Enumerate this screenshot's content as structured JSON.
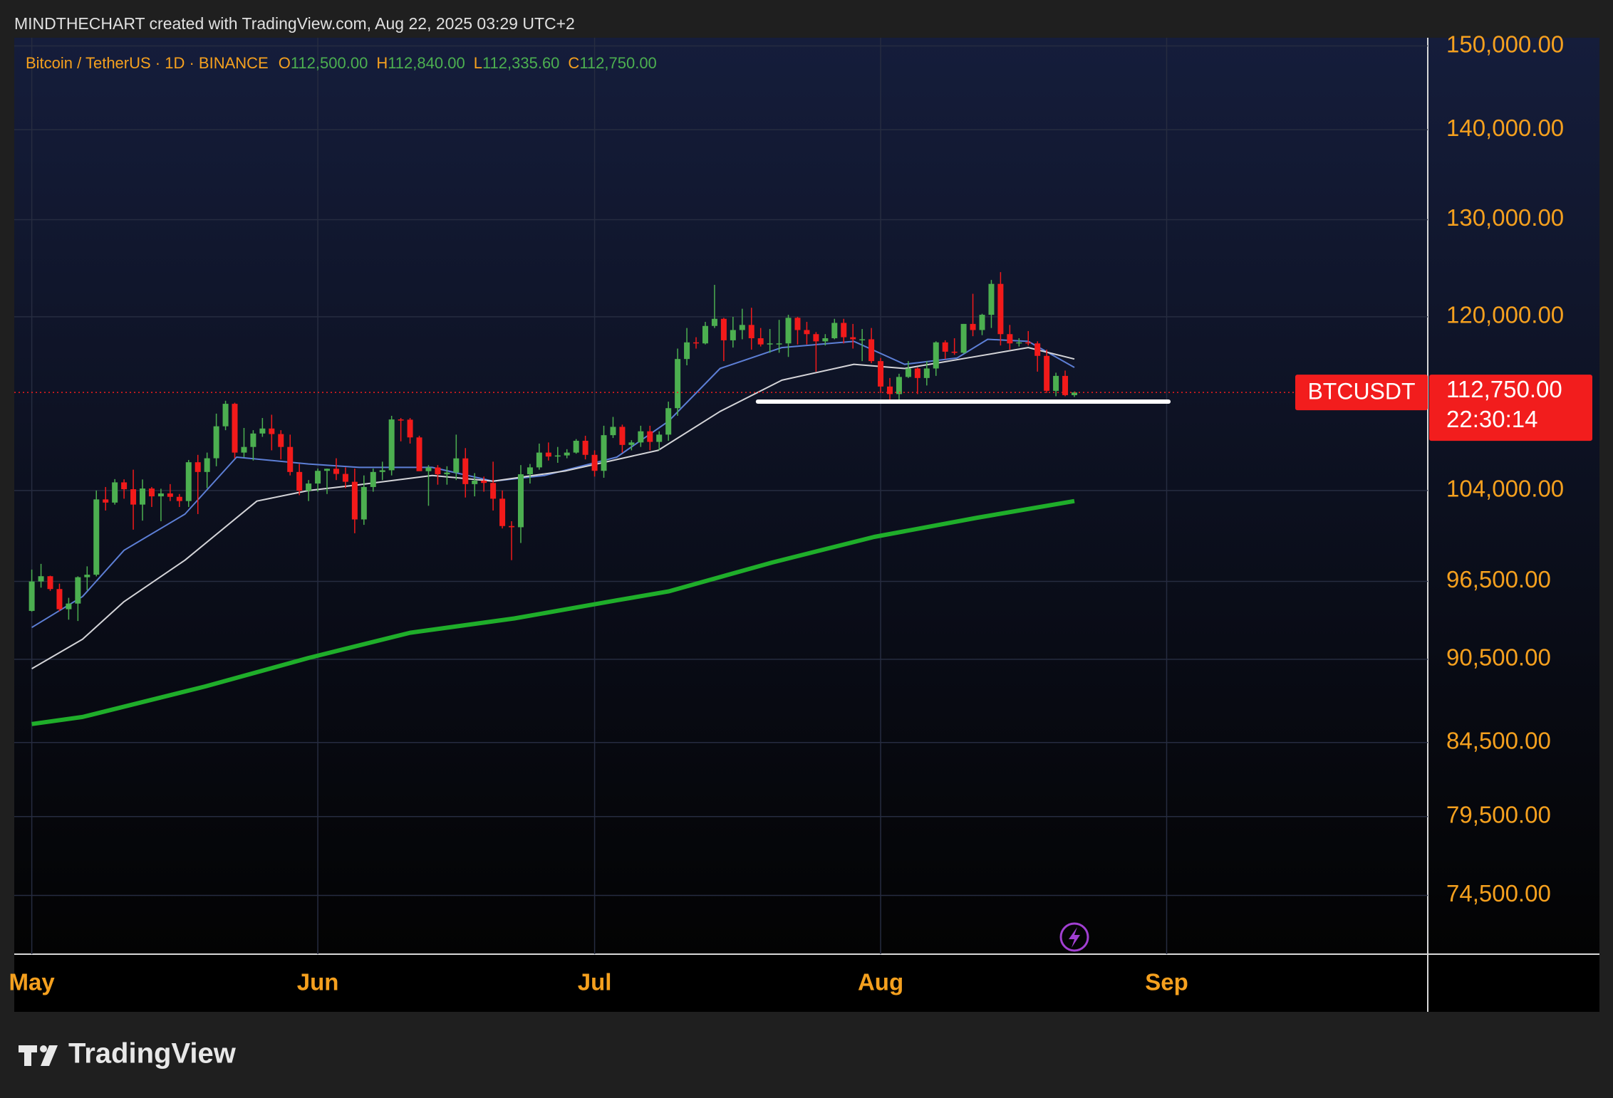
{
  "chart_data": {
    "type": "candlestick",
    "attribution": "MINDTHECHART created with TradingView.com, Aug 22, 2025 03:29 UTC+2",
    "title": "Bitcoin / TetherUS · 1D · BINANCE",
    "ohlc_legend": [
      {
        "key": "O",
        "label": "112,500.00"
      },
      {
        "key": "H",
        "label": "112,840.00"
      },
      {
        "key": "L",
        "label": "112,335.60"
      },
      {
        "key": "C",
        "label": "112,750.00"
      }
    ],
    "x": [
      0,
      1,
      2,
      3,
      4,
      5,
      6,
      7,
      8,
      9,
      10,
      11,
      12,
      13,
      14,
      15,
      16,
      17,
      18,
      19,
      20,
      21,
      22,
      23,
      24,
      25,
      26,
      27,
      28,
      29,
      30,
      31,
      32,
      33,
      34,
      35,
      36,
      37,
      38,
      39,
      40,
      41,
      42,
      43,
      44,
      45,
      46,
      47,
      48,
      49,
      50,
      51,
      52,
      53,
      54,
      55,
      56,
      57,
      58,
      59,
      60,
      61,
      62,
      63,
      64,
      65,
      66,
      67,
      68,
      69,
      70,
      71,
      72,
      73,
      74,
      75,
      76,
      77,
      78,
      79,
      80,
      81,
      82,
      83,
      84,
      85,
      86,
      87,
      88,
      89,
      90,
      91,
      92,
      93,
      94,
      95,
      96,
      97,
      98,
      99,
      100,
      101,
      102,
      103,
      104,
      105,
      106,
      107,
      108,
      109,
      110,
      111,
      112,
      113
    ],
    "open": [
      94180,
      96490,
      96910,
      95890,
      94310,
      94750,
      96830,
      97030,
      103240,
      102970,
      104700,
      104110,
      102800,
      104170,
      103500,
      103750,
      103460,
      103100,
      106450,
      105600,
      106800,
      109650,
      111700,
      107300,
      107800,
      109000,
      109450,
      108950,
      107800,
      105600,
      103980,
      104600,
      105700,
      105880,
      105430,
      104750,
      101550,
      104300,
      105600,
      105750,
      110270,
      110250,
      108650,
      105670,
      105990,
      105400,
      105550,
      106790,
      104550,
      104850,
      104650,
      103300,
      101000,
      100900,
      105400,
      106000,
      107300,
      106950,
      107050,
      107300,
      108350,
      107100,
      105700,
      108850,
      109600,
      107980,
      108200,
      109200,
      108250,
      108900,
      111300,
      115900,
      117500,
      117400,
      119100,
      119800,
      117700,
      118700,
      119200,
      117900,
      117300,
      117400,
      117400,
      119900,
      118700,
      118300,
      117600,
      117900,
      119400,
      118000,
      117800,
      117800,
      115700,
      113300,
      112600,
      114200,
      115000,
      114100,
      115000,
      117500,
      116600,
      116500,
      119300,
      118700,
      120200,
      123300,
      118300,
      117400,
      117500,
      117400,
      116200,
      112900,
      114300,
      112500
    ],
    "high": [
      97440,
      97900,
      96950,
      96320,
      95200,
      96900,
      97700,
      104000,
      104300,
      104980,
      104960,
      105800,
      104950,
      104300,
      104150,
      104550,
      103700,
      106650,
      107100,
      107300,
      110800,
      111980,
      111800,
      109500,
      109300,
      110400,
      110700,
      109300,
      108900,
      106300,
      104900,
      105900,
      105900,
      106800,
      106000,
      105900,
      105300,
      105900,
      106500,
      110600,
      110400,
      110400,
      108800,
      106200,
      106200,
      106100,
      108900,
      107700,
      105500,
      105200,
      106500,
      104000,
      101400,
      106200,
      106300,
      108100,
      108200,
      107800,
      107600,
      108500,
      108800,
      107500,
      109700,
      110500,
      109800,
      108400,
      109700,
      109700,
      109200,
      111900,
      116900,
      118900,
      118000,
      119500,
      123200,
      119900,
      120000,
      120800,
      120900,
      118900,
      118800,
      119700,
      120200,
      120000,
      119500,
      118500,
      118300,
      119800,
      119800,
      119300,
      118800,
      118900,
      116000,
      114100,
      114500,
      115700,
      115100,
      115700,
      117600,
      117700,
      117900,
      119300,
      122300,
      120300,
      123700,
      124500,
      119200,
      117900,
      118600,
      117600,
      116800,
      114600,
      114800,
      112840
    ],
    "low": [
      94130,
      96000,
      95750,
      94150,
      93500,
      93400,
      95800,
      96900,
      102300,
      102800,
      103300,
      100700,
      101450,
      102600,
      101400,
      103100,
      102600,
      102600,
      102000,
      104200,
      106100,
      109300,
      106800,
      106900,
      106600,
      108700,
      107500,
      106700,
      105300,
      103600,
      103100,
      103900,
      103700,
      104900,
      104200,
      100400,
      101100,
      103900,
      104900,
      105300,
      108300,
      108100,
      105700,
      102700,
      104500,
      104500,
      104900,
      103400,
      103500,
      103900,
      102300,
      100800,
      98200,
      99600,
      104600,
      105800,
      106600,
      106400,
      106800,
      107200,
      106700,
      105200,
      105100,
      108600,
      107300,
      107500,
      107800,
      107500,
      107500,
      108350,
      110600,
      115300,
      116900,
      117300,
      118900,
      115700,
      117000,
      117800,
      116800,
      117100,
      116500,
      116500,
      116100,
      117300,
      117300,
      114700,
      117200,
      117800,
      117400,
      116900,
      115700,
      115500,
      112700,
      112000,
      111900,
      114100,
      112600,
      113400,
      114300,
      115900,
      116300,
      116400,
      118100,
      118200,
      118900,
      117200,
      116800,
      117100,
      117200,
      114700,
      112700,
      112400,
      112400,
      112335.6
    ],
    "close": [
      96490,
      96910,
      95890,
      94310,
      94750,
      96830,
      97030,
      103240,
      102970,
      104700,
      104110,
      102800,
      104170,
      103500,
      103750,
      103460,
      103100,
      106450,
      105600,
      106800,
      109650,
      111700,
      107300,
      107800,
      109000,
      109450,
      108950,
      107800,
      105600,
      103980,
      104600,
      105700,
      105880,
      105430,
      104750,
      101550,
      104300,
      105600,
      105750,
      110270,
      110250,
      108650,
      105670,
      105990,
      105400,
      105550,
      106790,
      104550,
      104850,
      104650,
      103300,
      101000,
      100900,
      105400,
      106000,
      107300,
      106950,
      107050,
      107300,
      108350,
      107100,
      105700,
      108850,
      109600,
      107980,
      108200,
      109200,
      108250,
      108900,
      111300,
      115900,
      117500,
      117400,
      119100,
      119800,
      117700,
      118700,
      119200,
      117900,
      117300,
      117400,
      117400,
      119900,
      118700,
      118300,
      117600,
      117900,
      119400,
      118000,
      117800,
      117800,
      115700,
      113300,
      112600,
      114200,
      115000,
      114100,
      115000,
      117500,
      116600,
      116500,
      119300,
      118700,
      120200,
      123300,
      118300,
      117400,
      117500,
      117400,
      116200,
      112900,
      114300,
      112500,
      112750
    ],
    "up_color": "#4caf50",
    "down_color": "#f21a1a",
    "lines": [
      {
        "color": "#5d7fd6",
        "width": 2,
        "x": [
          0,
          5.5,
          10,
          16.6,
          22.2,
          30,
          35.5,
          43.4,
          50,
          55.6,
          63.4,
          69,
          74.6,
          81.3,
          89.1,
          94.6,
          100.3,
          103.6,
          108,
          113
        ],
        "values": [
          92900,
          95300,
          99000,
          102000,
          106900,
          106300,
          106000,
          106000,
          104800,
          105300,
          106900,
          110100,
          115000,
          117000,
          117600,
          115400,
          116000,
          117800,
          117600,
          115100
        ]
      },
      {
        "color": "#d4d4d8",
        "width": 2,
        "x": [
          0,
          5.5,
          10,
          16.6,
          24.4,
          30,
          35.5,
          43.4,
          50,
          57.9,
          67.9,
          74.6,
          81.3,
          89.1,
          94.6,
          101.4,
          108,
          113
        ],
        "values": [
          89800,
          92000,
          94900,
          98200,
          103100,
          104000,
          104500,
          105300,
          104800,
          105700,
          107500,
          111000,
          113900,
          115400,
          115000,
          116000,
          117000,
          115900
        ]
      },
      {
        "color": "#1fae2a",
        "width": 6,
        "x": [
          0,
          5.5,
          18.8,
          30,
          41,
          52.3,
          63.4,
          69,
          80.2,
          91.3,
          102.5,
          113
        ],
        "values": [
          85800,
          86300,
          88500,
          90600,
          92500,
          93600,
          95000,
          95700,
          98000,
          100100,
          101700,
          103100
        ]
      }
    ],
    "support_line": {
      "color": "#ffffff",
      "x": [
        78.7,
        123.2
      ],
      "values": [
        111900,
        111900
      ]
    },
    "last_price": {
      "symbol": "BTCUSDT",
      "value": 112750,
      "label": "112,750.00",
      "countdown": "22:30:14",
      "color": "#f21d1d"
    },
    "xlim": [
      -1.9,
      151.3
    ],
    "xticks": [
      {
        "value": 0,
        "label": "May"
      },
      {
        "value": 31,
        "label": "Jun"
      },
      {
        "value": 61,
        "label": "Jul"
      },
      {
        "value": 92,
        "label": "Aug"
      },
      {
        "value": 123,
        "label": "Sep"
      }
    ],
    "ylim": [
      70980,
      151020
    ],
    "log_scale": true,
    "grid": true,
    "yticks": [
      {
        "value": 150000,
        "label": "150,000.00"
      },
      {
        "value": 140000,
        "label": "140,000.00"
      },
      {
        "value": 130000,
        "label": "130,000.00"
      },
      {
        "value": 120000,
        "label": "120,000.00"
      },
      {
        "value": 104000,
        "label": "104,000.00"
      },
      {
        "value": 96500,
        "label": "96,500.00"
      },
      {
        "value": 90500,
        "label": "90,500.00"
      },
      {
        "value": 84500,
        "label": "84,500.00"
      },
      {
        "value": 79500,
        "label": "79,500.00"
      },
      {
        "value": 74500,
        "label": "74,500.00"
      }
    ],
    "footer": "TradingView"
  }
}
